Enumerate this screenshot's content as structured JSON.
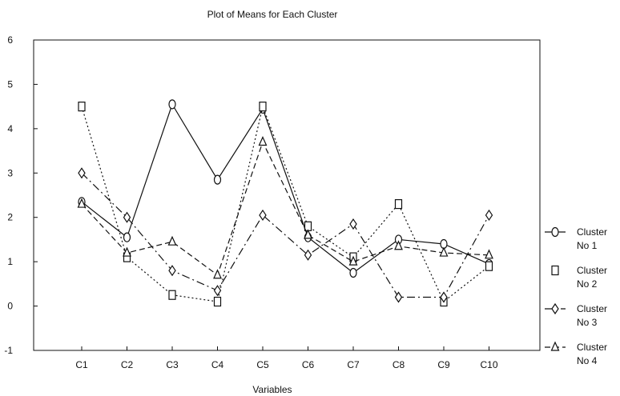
{
  "chart_data": {
    "type": "line",
    "title": "Plot of Means for Each Cluster",
    "xlabel": "Variables",
    "ylabel": "",
    "categories": [
      "C1",
      "C2",
      "C3",
      "C4",
      "C5",
      "C6",
      "C7",
      "C8",
      "C9",
      "C10"
    ],
    "ylim": [
      -1,
      6
    ],
    "yticks": [
      "-1",
      "0",
      "1",
      "2",
      "3",
      "4",
      "5",
      "6"
    ],
    "grid": false,
    "legend_position": "right",
    "series": [
      {
        "name_line1": "Cluster",
        "name_line2": "No 1",
        "marker": "circle",
        "dash": "solid",
        "values": [
          2.35,
          1.55,
          4.55,
          2.85,
          4.45,
          1.55,
          0.75,
          1.5,
          1.4,
          0.95
        ]
      },
      {
        "name_line1": "Cluster",
        "name_line2": "No 2",
        "marker": "square",
        "dash": "dotted",
        "values": [
          4.5,
          1.1,
          0.25,
          0.1,
          4.5,
          1.8,
          1.1,
          2.3,
          0.1,
          0.9
        ]
      },
      {
        "name_line1": "Cluster",
        "name_line2": "No 3",
        "marker": "diamond",
        "dash": "dashdot",
        "values": [
          3.0,
          2.0,
          0.8,
          0.35,
          2.05,
          1.15,
          1.85,
          0.2,
          0.2,
          2.05
        ]
      },
      {
        "name_line1": "Cluster",
        "name_line2": "No 4",
        "marker": "triangle",
        "dash": "dashed",
        "values": [
          2.3,
          1.2,
          1.45,
          0.7,
          3.7,
          1.6,
          1.0,
          1.35,
          1.2,
          1.15
        ]
      }
    ]
  }
}
